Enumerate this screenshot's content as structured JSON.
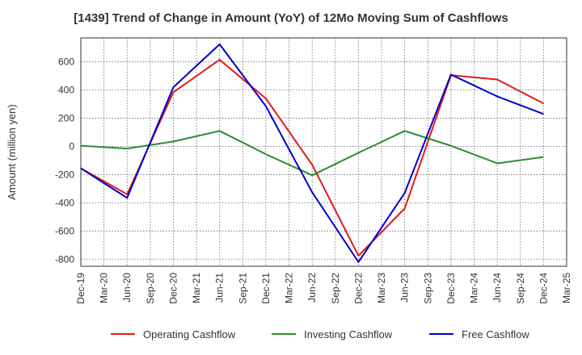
{
  "chart_data": {
    "type": "line",
    "title": "[1439]  Trend of Change in Amount (YoY) of 12Mo Moving Sum of Cashflows",
    "xlabel": "",
    "ylabel": "Amount (million yen)",
    "ylim": [
      -850,
      770
    ],
    "yticks": [
      -800,
      -600,
      -400,
      -200,
      0,
      200,
      400,
      600
    ],
    "ytick_labels": [
      "-800",
      "-600",
      "-400",
      "-200",
      "0",
      "200",
      "400",
      "600"
    ],
    "categories": [
      "Dec-19",
      "Mar-20",
      "Jun-20",
      "Sep-20",
      "Dec-20",
      "Mar-21",
      "Jun-21",
      "Sep-21",
      "Dec-21",
      "Mar-22",
      "Jun-22",
      "Sep-22",
      "Dec-22",
      "Mar-23",
      "Jun-23",
      "Sep-23",
      "Dec-23",
      "Mar-24",
      "Jun-24",
      "Sep-24",
      "Dec-24",
      "Mar-25"
    ],
    "grid": true,
    "legend_position": "bottom",
    "series": [
      {
        "name": "Operating Cashflow",
        "color": "#e31a1c",
        "values": [
          -155,
          null,
          -340,
          null,
          385,
          null,
          615,
          null,
          340,
          null,
          -130,
          null,
          -775,
          null,
          -440,
          null,
          505,
          null,
          475,
          null,
          305,
          null
        ]
      },
      {
        "name": "Investing Cashflow",
        "color": "#2e8b2e",
        "values": [
          5,
          null,
          -15,
          null,
          35,
          null,
          110,
          null,
          -55,
          null,
          -205,
          null,
          -45,
          null,
          110,
          null,
          5,
          null,
          -120,
          null,
          -75,
          null
        ]
      },
      {
        "name": "Free Cashflow",
        "color": "#0000cc",
        "values": [
          -155,
          null,
          -365,
          null,
          420,
          null,
          725,
          null,
          285,
          null,
          -325,
          null,
          -820,
          null,
          -330,
          null,
          510,
          null,
          355,
          null,
          230,
          null
        ]
      }
    ]
  }
}
